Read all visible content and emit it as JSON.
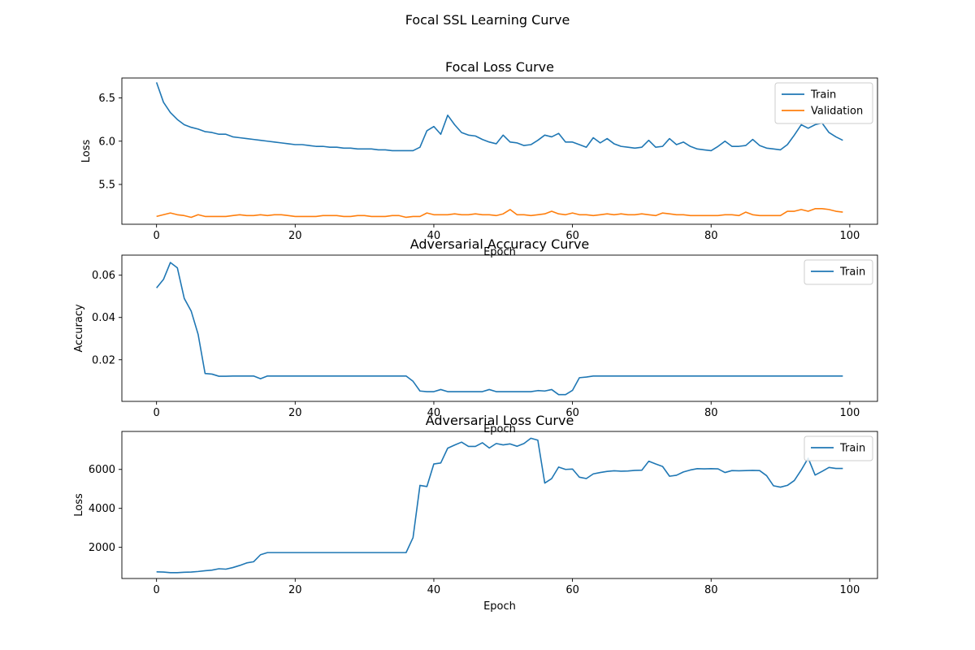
{
  "suptitle": "Focal SSL Learning Curve",
  "colors": {
    "train": "#1f77b4",
    "validation": "#ff7f0e"
  },
  "chart_data": [
    {
      "type": "line",
      "title": "Focal Loss Curve",
      "xlabel": "Epoch",
      "ylabel": "Loss",
      "xlim": [
        -5,
        104
      ],
      "ylim": [
        5.04,
        6.73
      ],
      "xticks": [
        0,
        20,
        40,
        60,
        80,
        100
      ],
      "yticks": [
        5.5,
        6.0,
        6.5
      ],
      "ytick_labels": [
        "5.5",
        "6.0",
        "6.5"
      ],
      "legend": "upper-right",
      "grid": false,
      "x": [
        0,
        1,
        2,
        3,
        4,
        5,
        6,
        7,
        8,
        9,
        10,
        11,
        12,
        13,
        14,
        15,
        16,
        17,
        18,
        19,
        20,
        21,
        22,
        23,
        24,
        25,
        26,
        27,
        28,
        29,
        30,
        31,
        32,
        33,
        34,
        35,
        36,
        37,
        38,
        39,
        40,
        41,
        42,
        43,
        44,
        45,
        46,
        47,
        48,
        49,
        50,
        51,
        52,
        53,
        54,
        55,
        56,
        57,
        58,
        59,
        60,
        61,
        62,
        63,
        64,
        65,
        66,
        67,
        68,
        69,
        70,
        71,
        72,
        73,
        74,
        75,
        76,
        77,
        78,
        79,
        80,
        81,
        82,
        83,
        84,
        85,
        86,
        87,
        88,
        89,
        90,
        91,
        92,
        93,
        94,
        95,
        96,
        97,
        98,
        99
      ],
      "series": [
        {
          "name": "Train",
          "color": "#1f77b4",
          "values": [
            6.68,
            6.45,
            6.33,
            6.25,
            6.19,
            6.16,
            6.14,
            6.11,
            6.1,
            6.08,
            6.08,
            6.05,
            6.04,
            6.03,
            6.02,
            6.01,
            6.0,
            5.99,
            5.98,
            5.97,
            5.96,
            5.96,
            5.95,
            5.94,
            5.94,
            5.93,
            5.93,
            5.92,
            5.92,
            5.91,
            5.91,
            5.91,
            5.9,
            5.9,
            5.89,
            5.89,
            5.89,
            5.89,
            5.93,
            6.12,
            6.17,
            6.08,
            6.3,
            6.19,
            6.1,
            6.07,
            6.06,
            6.02,
            5.99,
            5.97,
            6.07,
            5.99,
            5.98,
            5.95,
            5.96,
            6.01,
            6.07,
            6.05,
            6.09,
            5.99,
            5.99,
            5.96,
            5.93,
            6.04,
            5.98,
            6.03,
            5.97,
            5.94,
            5.93,
            5.92,
            5.93,
            6.01,
            5.93,
            5.94,
            6.03,
            5.96,
            5.99,
            5.94,
            5.91,
            5.9,
            5.89,
            5.94,
            6.0,
            5.94,
            5.94,
            5.95,
            6.02,
            5.95,
            5.92,
            5.91,
            5.9,
            5.96,
            6.07,
            6.19,
            6.15,
            6.19,
            6.21,
            6.1,
            6.05,
            6.01
          ]
        },
        {
          "name": "Validation",
          "color": "#ff7f0e",
          "values": [
            5.13,
            5.15,
            5.17,
            5.15,
            5.14,
            5.12,
            5.15,
            5.13,
            5.13,
            5.13,
            5.13,
            5.14,
            5.15,
            5.14,
            5.14,
            5.15,
            5.14,
            5.15,
            5.15,
            5.14,
            5.13,
            5.13,
            5.13,
            5.13,
            5.14,
            5.14,
            5.14,
            5.13,
            5.13,
            5.14,
            5.14,
            5.13,
            5.13,
            5.13,
            5.14,
            5.14,
            5.12,
            5.13,
            5.13,
            5.17,
            5.15,
            5.15,
            5.15,
            5.16,
            5.15,
            5.15,
            5.16,
            5.15,
            5.15,
            5.14,
            5.16,
            5.21,
            5.15,
            5.15,
            5.14,
            5.15,
            5.16,
            5.19,
            5.16,
            5.15,
            5.17,
            5.15,
            5.15,
            5.14,
            5.15,
            5.16,
            5.15,
            5.16,
            5.15,
            5.15,
            5.16,
            5.15,
            5.14,
            5.17,
            5.16,
            5.15,
            5.15,
            5.14,
            5.14,
            5.14,
            5.14,
            5.14,
            5.15,
            5.15,
            5.14,
            5.18,
            5.15,
            5.14,
            5.14,
            5.14,
            5.14,
            5.19,
            5.19,
            5.21,
            5.19,
            5.22,
            5.22,
            5.21,
            5.19,
            5.18
          ]
        }
      ]
    },
    {
      "type": "line",
      "title": "Adversarial Accuracy Curve",
      "xlabel": "Epoch",
      "ylabel": "Accuracy",
      "xlim": [
        -5,
        104
      ],
      "ylim": [
        0.0003,
        0.0695
      ],
      "xticks": [
        0,
        20,
        40,
        60,
        80,
        100
      ],
      "yticks": [
        0.02,
        0.04,
        0.06
      ],
      "ytick_labels": [
        "0.02",
        "0.04",
        "0.06"
      ],
      "legend": "upper-right",
      "grid": false,
      "x": [
        0,
        1,
        2,
        3,
        4,
        5,
        6,
        7,
        8,
        9,
        10,
        11,
        12,
        13,
        14,
        15,
        16,
        17,
        18,
        19,
        20,
        21,
        22,
        23,
        24,
        25,
        26,
        27,
        28,
        29,
        30,
        31,
        32,
        33,
        34,
        35,
        36,
        37,
        38,
        39,
        40,
        41,
        42,
        43,
        44,
        45,
        46,
        47,
        48,
        49,
        50,
        51,
        52,
        53,
        54,
        55,
        56,
        57,
        58,
        59,
        60,
        61,
        62,
        63,
        64,
        65,
        66,
        67,
        68,
        69,
        70,
        71,
        72,
        73,
        74,
        75,
        76,
        77,
        78,
        79,
        80,
        81,
        82,
        83,
        84,
        85,
        86,
        87,
        88,
        89,
        90,
        91,
        92,
        93,
        94,
        95,
        96,
        97,
        98,
        99
      ],
      "series": [
        {
          "name": "Train",
          "color": "#1f77b4",
          "values": [
            0.054,
            0.058,
            0.066,
            0.0635,
            0.049,
            0.043,
            0.032,
            0.0135,
            0.0132,
            0.0122,
            0.0122,
            0.0123,
            0.0123,
            0.0123,
            0.0123,
            0.011,
            0.0123,
            0.0123,
            0.0123,
            0.0123,
            0.0123,
            0.0123,
            0.0123,
            0.0123,
            0.0123,
            0.0123,
            0.0123,
            0.0123,
            0.0123,
            0.0123,
            0.0123,
            0.0123,
            0.0123,
            0.0123,
            0.0123,
            0.0123,
            0.0123,
            0.0098,
            0.0052,
            0.0049,
            0.0049,
            0.0059,
            0.0049,
            0.0049,
            0.0049,
            0.0049,
            0.0049,
            0.0049,
            0.0059,
            0.0049,
            0.0049,
            0.0049,
            0.0049,
            0.0049,
            0.0049,
            0.0054,
            0.0052,
            0.0059,
            0.0035,
            0.0035,
            0.0055,
            0.0115,
            0.0118,
            0.0123,
            0.0123,
            0.0123,
            0.0123,
            0.0123,
            0.0123,
            0.0123,
            0.0123,
            0.0123,
            0.0123,
            0.0123,
            0.0123,
            0.0123,
            0.0123,
            0.0123,
            0.0123,
            0.0123,
            0.0123,
            0.0123,
            0.0123,
            0.0123,
            0.0123,
            0.0123,
            0.0123,
            0.0123,
            0.0123,
            0.0123,
            0.0123,
            0.0123,
            0.0123,
            0.0123,
            0.0123,
            0.0123,
            0.0123,
            0.0123,
            0.0123,
            0.0123
          ]
        }
      ]
    },
    {
      "type": "line",
      "title": "Adversarial Loss Curve",
      "xlabel": "Epoch",
      "ylabel": "Loss",
      "xlim": [
        -5,
        104
      ],
      "ylim": [
        400,
        7950
      ],
      "xticks": [
        0,
        20,
        40,
        60,
        80,
        100
      ],
      "yticks": [
        2000,
        4000,
        6000
      ],
      "ytick_labels": [
        "2000",
        "4000",
        "6000"
      ],
      "legend": "upper-right",
      "grid": false,
      "x": [
        0,
        1,
        2,
        3,
        4,
        5,
        6,
        7,
        8,
        9,
        10,
        11,
        12,
        13,
        14,
        15,
        16,
        17,
        18,
        19,
        20,
        21,
        22,
        23,
        24,
        25,
        26,
        27,
        28,
        29,
        30,
        31,
        32,
        33,
        34,
        35,
        36,
        37,
        38,
        39,
        40,
        41,
        42,
        43,
        44,
        45,
        46,
        47,
        48,
        49,
        50,
        51,
        52,
        53,
        54,
        55,
        56,
        57,
        58,
        59,
        60,
        61,
        62,
        63,
        64,
        65,
        66,
        67,
        68,
        69,
        70,
        71,
        72,
        73,
        74,
        75,
        76,
        77,
        78,
        79,
        80,
        81,
        82,
        83,
        84,
        85,
        86,
        87,
        88,
        89,
        90,
        91,
        92,
        93,
        94,
        95,
        96,
        97,
        98,
        99
      ],
      "series": [
        {
          "name": "Train",
          "color": "#1f77b4",
          "values": [
            740,
            730,
            700,
            700,
            720,
            730,
            760,
            800,
            830,
            900,
            880,
            960,
            1070,
            1200,
            1260,
            1620,
            1730,
            1730,
            1730,
            1730,
            1730,
            1730,
            1730,
            1730,
            1730,
            1730,
            1730,
            1730,
            1730,
            1730,
            1730,
            1730,
            1730,
            1730,
            1730,
            1730,
            1730,
            2500,
            5180,
            5120,
            6280,
            6330,
            7090,
            7250,
            7400,
            7180,
            7180,
            7370,
            7100,
            7330,
            7260,
            7310,
            7190,
            7330,
            7600,
            7500,
            5300,
            5530,
            6120,
            6000,
            6020,
            5600,
            5530,
            5770,
            5840,
            5900,
            5930,
            5910,
            5920,
            5950,
            5960,
            6420,
            6280,
            6150,
            5650,
            5700,
            5870,
            5970,
            6040,
            6030,
            6040,
            6030,
            5840,
            5940,
            5930,
            5940,
            5950,
            5940,
            5680,
            5160,
            5090,
            5180,
            5430,
            5970,
            6580,
            5710,
            5900,
            6100,
            6050,
            6050
          ]
        }
      ]
    }
  ]
}
